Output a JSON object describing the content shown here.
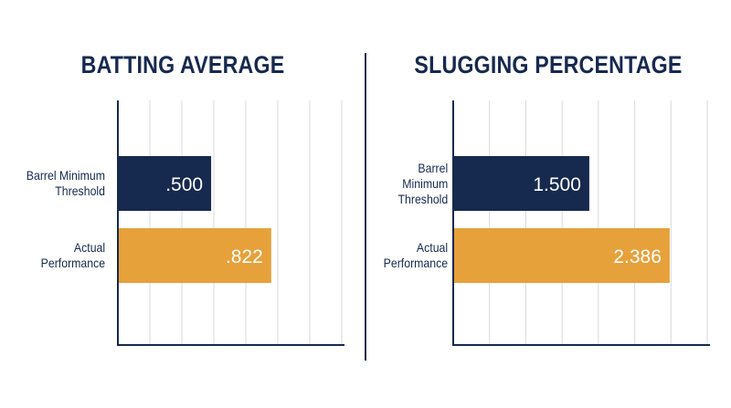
{
  "chart_data": [
    {
      "type": "bar",
      "orientation": "horizontal",
      "title": "BATTING AVERAGE",
      "categories": [
        {
          "label_lines": [
            "Barrel Minimum",
            "Threshold"
          ],
          "value": 0.5,
          "data_label": ".500",
          "color": "#16294f"
        },
        {
          "label_lines": [
            "Actual",
            "Performance"
          ],
          "value": 0.822,
          "data_label": ".822",
          "color": "#e7a13a"
        }
      ],
      "xlim": [
        0,
        1.2
      ],
      "grid": true,
      "gridline_count": 7
    },
    {
      "type": "bar",
      "orientation": "horizontal",
      "title": "SLUGGING PERCENTAGE",
      "categories": [
        {
          "label_lines": [
            "Barrel",
            "Minimum",
            "Threshold"
          ],
          "value": 1.5,
          "data_label": "1.500",
          "color": "#16294f"
        },
        {
          "label_lines": [
            "Actual",
            "Performance"
          ],
          "value": 2.386,
          "data_label": "2.386",
          "color": "#e7a13a"
        }
      ],
      "xlim": [
        0,
        2.8
      ],
      "grid": true,
      "gridline_count": 7
    }
  ]
}
